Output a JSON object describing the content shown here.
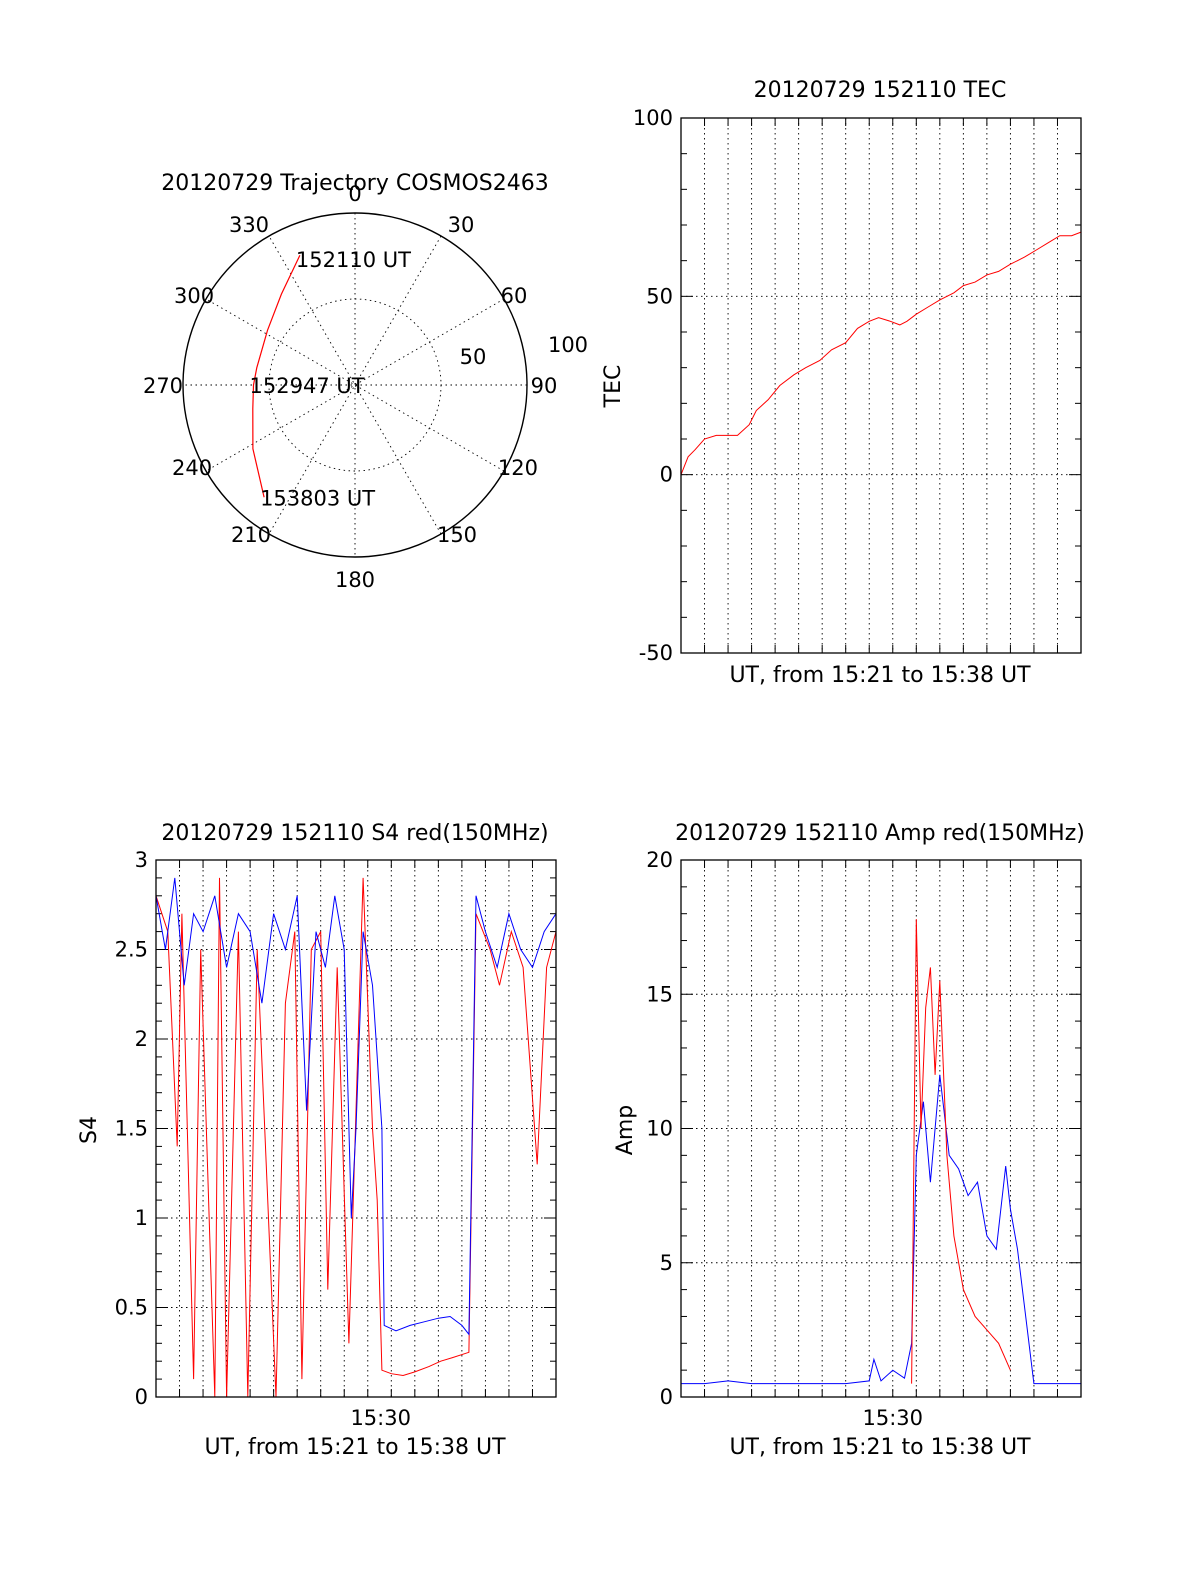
{
  "colors": {
    "red": "#ff0000",
    "blue": "#0000ff",
    "axis": "#000000"
  },
  "chart_data": [
    {
      "id": "trajectory",
      "type": "polar",
      "title": "20120729 Trajectory COSMOS2463",
      "angle_labels": [
        "0",
        "30",
        "60",
        "90",
        "120",
        "150",
        "180",
        "210",
        "240",
        "270",
        "300",
        "330"
      ],
      "radial_labels": [
        "50",
        "100"
      ],
      "grid_circle": 50,
      "rmax": 100,
      "points": [
        {
          "az": 337,
          "r": 82
        },
        {
          "az": 321,
          "r": 68
        },
        {
          "az": 302,
          "r": 60
        },
        {
          "az": 280,
          "r": 58
        },
        {
          "az": 270,
          "r": 59
        },
        {
          "az": 257,
          "r": 61
        },
        {
          "az": 238,
          "r": 70
        },
        {
          "az": 219,
          "r": 84
        }
      ],
      "annotations": [
        {
          "text": "152110 UT",
          "az": 337,
          "r": 82
        },
        {
          "text": "152947 UT",
          "az": 270,
          "r": 59
        },
        {
          "text": "153803 UT",
          "az": 219,
          "r": 84
        }
      ]
    },
    {
      "id": "tec",
      "type": "line",
      "title": "20120729 152110 TEC",
      "xlabel": "UT, from 15:21 to 15:38 UT",
      "ylabel": "TEC",
      "ylim": [
        -50,
        100
      ],
      "yticks": [
        "100",
        "50",
        "0",
        "-50"
      ],
      "grid": true,
      "series": [
        {
          "color": "red",
          "x": [
            0,
            0.3,
            0.6,
            1.0,
            1.5,
            2.0,
            2.4,
            2.9,
            3.2,
            3.7,
            4.2,
            4.8,
            5.3,
            5.9,
            6.4,
            7.0,
            7.5,
            8.0,
            8.4,
            8.9,
            9.3,
            9.6,
            10.0,
            10.5,
            11.0,
            11.6,
            12.0,
            12.5,
            13.0,
            13.5,
            14.0,
            14.6,
            15.1,
            15.6,
            16.1,
            16.6,
            17.0
          ],
          "y": [
            0,
            5,
            7,
            10,
            11,
            11,
            11,
            14,
            18,
            21,
            25,
            28,
            30,
            32,
            35,
            37,
            41,
            43,
            44,
            43,
            42,
            43,
            45,
            47,
            49,
            51,
            53,
            54,
            56,
            57,
            59,
            61,
            63,
            65,
            67,
            67,
            68
          ]
        }
      ]
    },
    {
      "id": "s4",
      "type": "line",
      "title": "20120729 152110 S4 red(150MHz)",
      "xlabel": "UT, from 15:21 to 15:38 UT",
      "ylabel": "S4",
      "ylim": [
        0,
        3
      ],
      "yticks": [
        "3",
        "2.5",
        "2",
        "1.5",
        "1",
        "0.5",
        "0"
      ],
      "xtick": {
        "label": "15:30",
        "x": 9.55
      },
      "grid": true,
      "series": [
        {
          "color": "red",
          "x": [
            0,
            0.5,
            0.9,
            1.1,
            1.6,
            1.9,
            2.5,
            2.7,
            3.0,
            3.5,
            3.9,
            4.3,
            5.1,
            5.5,
            5.9,
            6.2,
            6.6,
            7.0,
            7.3,
            7.7,
            8.2,
            8.8,
            9.2,
            9.4,
            9.6,
            10.0,
            10.5,
            11.0,
            11.6,
            12.1,
            12.6,
            13.3,
            13.6,
            14.2,
            14.6,
            15.1,
            15.6,
            16.2,
            16.6,
            17.0
          ],
          "y": [
            2.8,
            2.6,
            1.4,
            2.7,
            0.1,
            2.5,
            0.0,
            2.9,
            0.0,
            2.6,
            0.0,
            2.5,
            0.0,
            2.2,
            2.6,
            0.1,
            2.5,
            2.6,
            0.6,
            2.4,
            0.3,
            2.9,
            1.5,
            1.1,
            0.15,
            0.13,
            0.12,
            0.14,
            0.17,
            0.2,
            0.22,
            0.25,
            2.7,
            2.5,
            2.3,
            2.6,
            2.4,
            1.3,
            2.4,
            2.6
          ]
        },
        {
          "color": "blue",
          "x": [
            0,
            0.4,
            0.8,
            1.2,
            1.6,
            2.0,
            2.5,
            3.0,
            3.5,
            4.0,
            4.5,
            5.0,
            5.5,
            6.0,
            6.4,
            6.8,
            7.2,
            7.6,
            8.0,
            8.3,
            8.5,
            8.8,
            9.2,
            9.6,
            9.7,
            10.2,
            10.8,
            11.4,
            12.0,
            12.5,
            13.0,
            13.3,
            13.6,
            14.0,
            14.5,
            15.0,
            15.5,
            16.0,
            16.5,
            17.0
          ],
          "y": [
            2.8,
            2.5,
            2.9,
            2.3,
            2.7,
            2.6,
            2.8,
            2.4,
            2.7,
            2.6,
            2.2,
            2.7,
            2.5,
            2.8,
            1.6,
            2.6,
            2.4,
            2.8,
            2.5,
            1.0,
            1.5,
            2.6,
            2.3,
            1.5,
            0.4,
            0.37,
            0.4,
            0.42,
            0.44,
            0.45,
            0.4,
            0.35,
            2.8,
            2.6,
            2.4,
            2.7,
            2.5,
            2.4,
            2.6,
            2.7
          ]
        }
      ]
    },
    {
      "id": "amp",
      "type": "line",
      "title": "20120729 152110 Amp red(150MHz)",
      "xlabel": "UT, from 15:21 to 15:38 UT",
      "ylabel": "Amp",
      "ylim": [
        0,
        20
      ],
      "yticks": [
        "20",
        "15",
        "10",
        "5",
        "0"
      ],
      "xtick": {
        "label": "15:30",
        "x": 9.0
      },
      "grid": true,
      "series": [
        {
          "color": "red",
          "x": [
            9.8,
            10.0,
            10.2,
            10.4,
            10.6,
            10.8,
            11.0,
            11.3,
            11.6,
            12.0,
            12.5,
            13.0,
            13.5,
            14.0
          ],
          "y": [
            0.5,
            17.8,
            10.0,
            14.5,
            16.0,
            12.0,
            15.5,
            9.0,
            6.0,
            4.0,
            3.0,
            2.5,
            2.0,
            1.0
          ]
        },
        {
          "color": "blue",
          "x": [
            0,
            1,
            2,
            3,
            4,
            5,
            6,
            7,
            8,
            8.2,
            8.5,
            9.0,
            9.5,
            9.8,
            10.0,
            10.3,
            10.6,
            11.0,
            11.4,
            11.8,
            12.2,
            12.6,
            13.0,
            13.4,
            13.8,
            14.0,
            14.3,
            15.0,
            15.5,
            16.0,
            16.5,
            17.0
          ],
          "y": [
            0.5,
            0.5,
            0.6,
            0.5,
            0.5,
            0.5,
            0.5,
            0.5,
            0.6,
            1.4,
            0.6,
            1.0,
            0.7,
            2.0,
            9.0,
            11.0,
            8.0,
            12.0,
            9.0,
            8.5,
            7.5,
            8.0,
            6.0,
            5.5,
            8.6,
            7.0,
            5.5,
            0.5,
            0.5,
            0.5,
            0.5,
            0.5
          ]
        }
      ]
    }
  ]
}
